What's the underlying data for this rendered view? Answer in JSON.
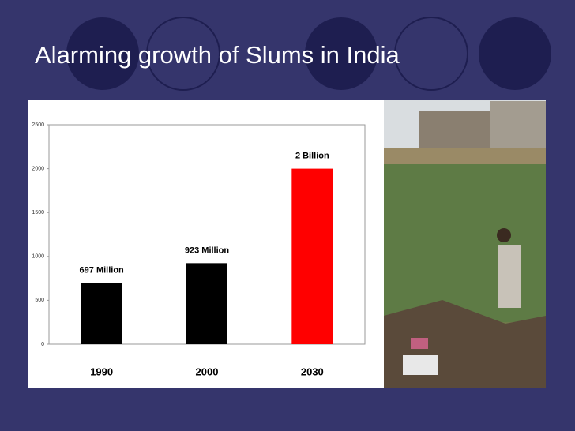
{
  "title": "Alarming growth of Slums in India",
  "chart_data": {
    "type": "bar",
    "categories": [
      "1990",
      "2000",
      "2030"
    ],
    "values": [
      697,
      923,
      2000
    ],
    "value_labels": [
      "697 Million",
      "923 Million",
      "2 Billion"
    ],
    "colors": [
      "#000000",
      "#000000",
      "#ff0000"
    ],
    "ylim": [
      0,
      2500
    ],
    "yticks": [
      0,
      500,
      1000,
      1500,
      2000,
      2500
    ]
  }
}
